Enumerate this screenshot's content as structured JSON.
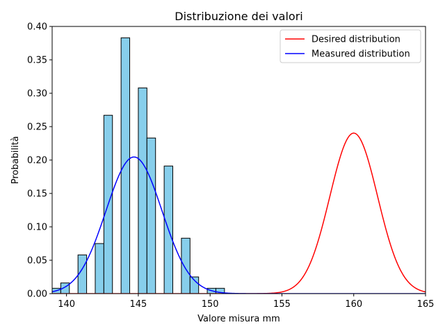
{
  "chart_data": {
    "type": "bar",
    "title": "Distribuzione dei valori",
    "xlabel": "Valore misura mm",
    "ylabel": "Probabilità",
    "xlim": [
      139,
      165
    ],
    "ylim": [
      0,
      0.4
    ],
    "x_ticks": [
      "140",
      "145",
      "150",
      "155",
      "160",
      "165"
    ],
    "y_ticks": [
      "0.00",
      "0.05",
      "0.10",
      "0.15",
      "0.20",
      "0.25",
      "0.30",
      "0.35",
      "0.40"
    ],
    "grid": false,
    "legend_position": "top-right",
    "histogram": {
      "color": "#87ceeb",
      "edgecolor": "#000000",
      "bins": [
        {
          "start": 139.0,
          "end": 139.6,
          "value": 0.008
        },
        {
          "start": 139.6,
          "end": 140.2,
          "value": 0.016
        },
        {
          "start": 140.8,
          "end": 141.4,
          "value": 0.058
        },
        {
          "start": 142.0,
          "end": 142.6,
          "value": 0.075
        },
        {
          "start": 142.6,
          "end": 143.2,
          "value": 0.267
        },
        {
          "start": 143.8,
          "end": 144.4,
          "value": 0.383
        },
        {
          "start": 145.0,
          "end": 145.6,
          "value": 0.308
        },
        {
          "start": 145.6,
          "end": 146.2,
          "value": 0.233
        },
        {
          "start": 146.8,
          "end": 147.4,
          "value": 0.191
        },
        {
          "start": 148.0,
          "end": 148.6,
          "value": 0.083
        },
        {
          "start": 148.6,
          "end": 149.2,
          "value": 0.025
        },
        {
          "start": 149.8,
          "end": 150.4,
          "value": 0.008
        },
        {
          "start": 150.4,
          "end": 151.0,
          "value": 0.008
        }
      ]
    },
    "series": [
      {
        "name": "Desired distribution",
        "color": "#ff0000",
        "mean": 160.0,
        "std": 1.66
      },
      {
        "name": "Measured distribution",
        "color": "#0000ff",
        "mean": 144.7,
        "std": 1.95
      }
    ]
  }
}
